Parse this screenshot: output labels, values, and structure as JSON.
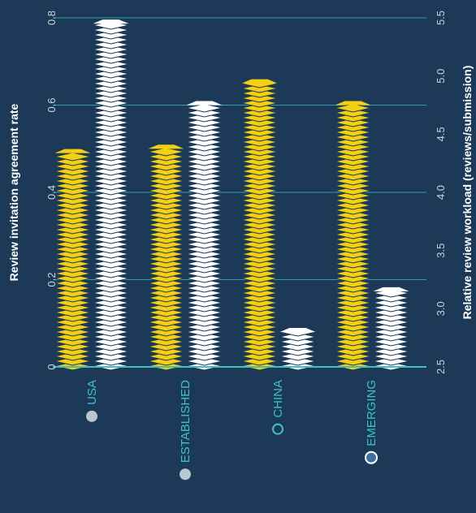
{
  "chart_data": {
    "type": "bar",
    "categories": [
      "USA",
      "ESTABLISHED",
      "CHINA",
      "EMERGING"
    ],
    "category_markers": [
      {
        "style": "filled",
        "color": "#b9c6d3"
      },
      {
        "style": "filled",
        "color": "#b9c6d3"
      },
      {
        "style": "hollow",
        "color": "#3cc1c7"
      },
      {
        "style": "filled",
        "color": "#3f6fa6",
        "outline": "#ffffff"
      }
    ],
    "series": [
      {
        "values": [
          0.49,
          0.5,
          0.65,
          0.6
        ],
        "axis": "left",
        "color": "#f5cf12"
      },
      {
        "values": [
          5.45,
          4.75,
          2.8,
          3.15
        ],
        "axis": "right",
        "color": "#ffffff"
      }
    ],
    "ylabel": "Review invitation agreement rate",
    "ylabel_right": "Relative review workload (reviews/submission)",
    "ylim": [
      0,
      0.8
    ],
    "ylim_right": [
      2.5,
      5.5
    ],
    "yticks": [
      "0",
      "0.2",
      "0.4",
      "0.6",
      "0.8"
    ],
    "yticks_right": [
      "2.5",
      "3.0",
      "3.5",
      "4.0",
      "4.5",
      "5.0",
      "5.5"
    ],
    "grid": true
  },
  "colors": {
    "background": "#1c3a57",
    "grid": "#2f9fb0",
    "baseline": "#3cc1c7"
  }
}
